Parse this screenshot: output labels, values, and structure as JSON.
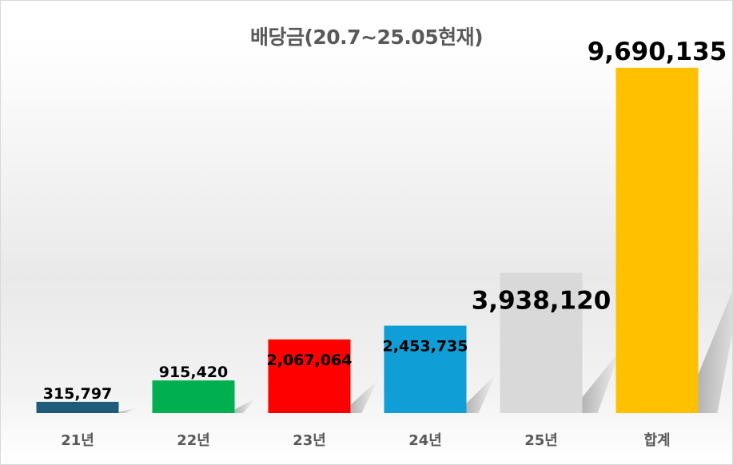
{
  "chart_data": {
    "type": "bar",
    "title": "배당금(20.7~25.05현재)",
    "categories": [
      "21년",
      "22년",
      "23년",
      "24년",
      "25년",
      "합계"
    ],
    "values": [
      315797,
      915420,
      2067064,
      2453735,
      3938120,
      9690135
    ],
    "value_labels": [
      "315,797",
      "915,420",
      "2,067,064",
      "2,453,735",
      "3,938,120",
      "9,690,135"
    ],
    "colors": [
      "#1f5c7a",
      "#00b050",
      "#ff0000",
      "#0f9ed5",
      "#d9d9d9",
      "#ffc000"
    ],
    "ylim": [
      0,
      10000000
    ],
    "grid": false,
    "legend": "none"
  }
}
